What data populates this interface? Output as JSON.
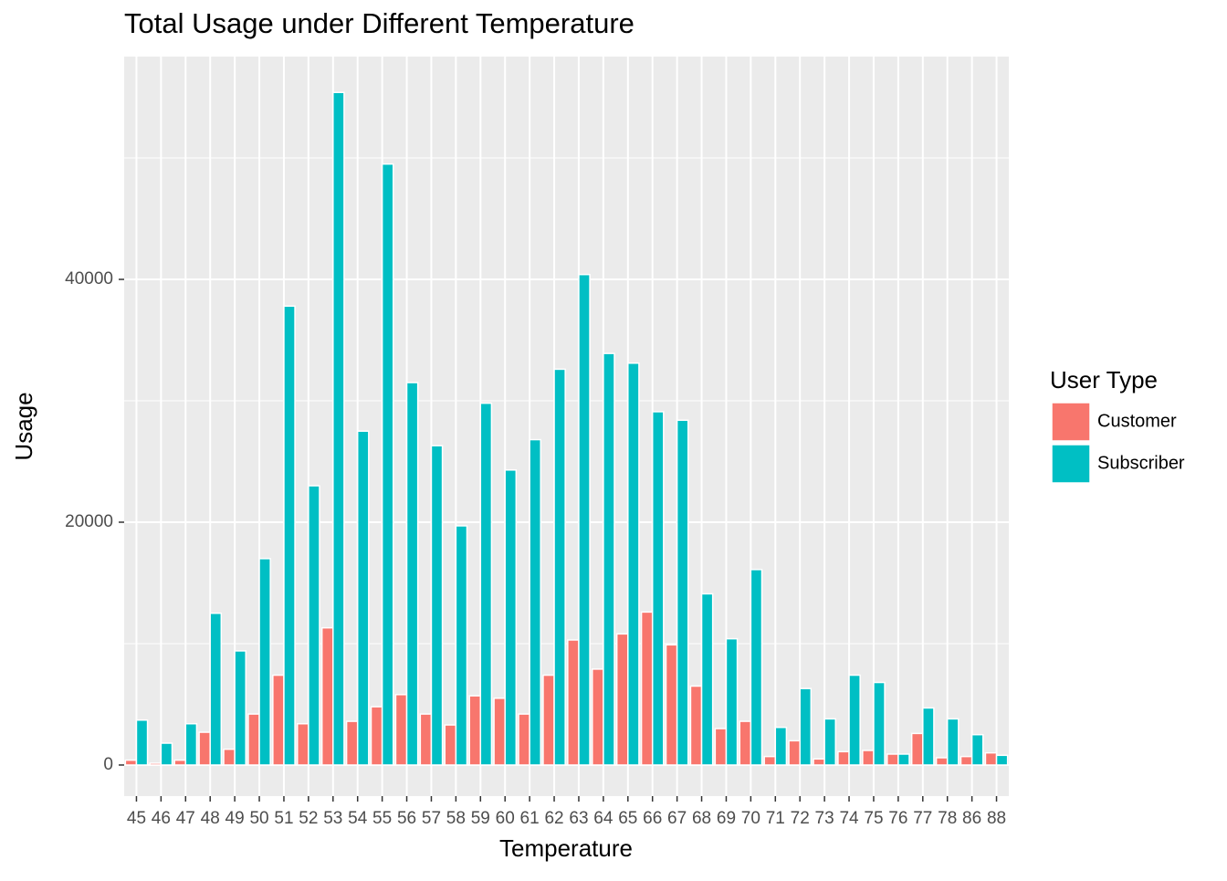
{
  "chart_data": {
    "type": "bar",
    "title": "Total Usage under Different Temperature",
    "x_label": "Temperature",
    "y_label": "Usage",
    "legend_title": "User Type",
    "categories": [
      "45",
      "46",
      "47",
      "48",
      "49",
      "50",
      "51",
      "52",
      "53",
      "54",
      "55",
      "56",
      "57",
      "58",
      "59",
      "60",
      "61",
      "62",
      "63",
      "64",
      "65",
      "66",
      "67",
      "68",
      "69",
      "70",
      "71",
      "72",
      "73",
      "74",
      "75",
      "76",
      "77",
      "78",
      "86",
      "88"
    ],
    "series": [
      {
        "name": "Customer",
        "color": "#F8766D",
        "values": [
          400,
          150,
          400,
          2700,
          1300,
          4200,
          7400,
          3400,
          11300,
          3600,
          4800,
          5800,
          4200,
          3300,
          5700,
          5500,
          4200,
          7400,
          10300,
          7900,
          10800,
          12600,
          9900,
          6500,
          3000,
          3600,
          700,
          2000,
          500,
          1100,
          1200,
          900,
          2600,
          600,
          700,
          1000
        ]
      },
      {
        "name": "Subscriber",
        "color": "#00BFC4",
        "values": [
          3700,
          1800,
          3400,
          12500,
          9400,
          17000,
          37800,
          23000,
          55400,
          27500,
          49500,
          31500,
          26300,
          19700,
          29800,
          24300,
          26800,
          32600,
          40400,
          33900,
          33100,
          29100,
          28400,
          14100,
          10400,
          16100,
          3100,
          6300,
          3800,
          7400,
          6800,
          900,
          4700,
          3800,
          2500,
          800
        ]
      }
    ],
    "ylim": [
      -2560,
      58350
    ],
    "yticks": [
      0,
      20000,
      40000
    ],
    "grid": true,
    "legend": "right"
  }
}
